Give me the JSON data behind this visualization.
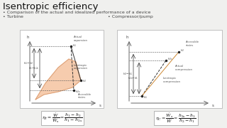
{
  "title": "Isentropic efficiency",
  "bullet1": "Comparison of the actual and idealized performance of a device",
  "bullet2_left": "• Turbine",
  "bullet2_right": "• Compressor/pump",
  "bg_color": "#f0f0ee",
  "diagram_bg": "#ffffff",
  "text_color": "#444444",
  "title_color": "#111111",
  "formula_turbine": "$\\eta_T = \\dfrac{\\dot{W}}{\\dot{W}_s} = \\dfrac{h_1 - h_2}{h_1 - h_{2s}}$",
  "formula_compressor": "$\\eta_C = \\dfrac{\\dot{W}_s}{\\dot{W}} = \\dfrac{h_{2s} - h_1}{h_2 - h_1}$",
  "orange_fill": "#f5c4a0",
  "orange_edge": "#d4956a"
}
